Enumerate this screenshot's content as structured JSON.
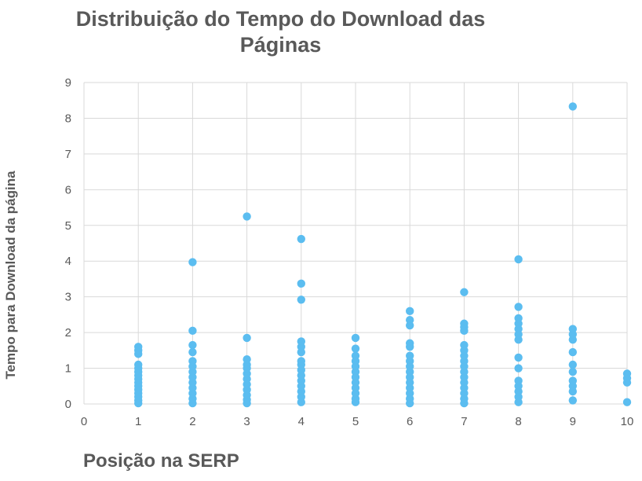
{
  "chart_data": {
    "type": "scatter",
    "title_lines": [
      "Distribuição do Tempo do Download das",
      "Páginas"
    ],
    "xlabel": "Posição na SERP",
    "ylabel": "Tempo para Download da página",
    "xlim": [
      0,
      10
    ],
    "ylim": [
      0,
      9
    ],
    "x_ticks": [
      0,
      1,
      2,
      3,
      4,
      5,
      6,
      7,
      8,
      9,
      10
    ],
    "y_ticks": [
      0,
      1,
      2,
      3,
      4,
      5,
      6,
      7,
      8,
      9
    ],
    "grid": true,
    "legend": "none",
    "marker_color": "#5BBDF0",
    "grid_color": "#D9D9D9",
    "series": [
      {
        "points": [
          [
            1,
            0.02
          ],
          [
            1,
            0.1
          ],
          [
            1,
            0.2
          ],
          [
            1,
            0.3
          ],
          [
            1,
            0.4
          ],
          [
            1,
            0.5
          ],
          [
            1,
            0.6
          ],
          [
            1,
            0.7
          ],
          [
            1,
            0.8
          ],
          [
            1,
            0.9
          ],
          [
            1,
            1.0
          ],
          [
            1,
            1.1
          ],
          [
            1,
            1.4
          ],
          [
            1,
            1.5
          ],
          [
            1,
            1.6
          ],
          [
            2,
            0.02
          ],
          [
            2,
            0.15
          ],
          [
            2,
            0.3
          ],
          [
            2,
            0.45
          ],
          [
            2,
            0.6
          ],
          [
            2,
            0.75
          ],
          [
            2,
            0.9
          ],
          [
            2,
            1.05
          ],
          [
            2,
            1.2
          ],
          [
            2,
            1.45
          ],
          [
            2,
            1.65
          ],
          [
            2,
            2.05
          ],
          [
            2,
            3.97
          ],
          [
            3,
            0.02
          ],
          [
            3,
            0.12
          ],
          [
            3,
            0.25
          ],
          [
            3,
            0.4
          ],
          [
            3,
            0.55
          ],
          [
            3,
            0.7
          ],
          [
            3,
            0.85
          ],
          [
            3,
            1.0
          ],
          [
            3,
            1.1
          ],
          [
            3,
            1.25
          ],
          [
            3,
            1.85
          ],
          [
            3,
            5.25
          ],
          [
            4,
            0.05
          ],
          [
            4,
            0.2
          ],
          [
            4,
            0.35
          ],
          [
            4,
            0.5
          ],
          [
            4,
            0.65
          ],
          [
            4,
            0.8
          ],
          [
            4,
            0.95
          ],
          [
            4,
            1.1
          ],
          [
            4,
            1.2
          ],
          [
            4,
            1.45
          ],
          [
            4,
            1.6
          ],
          [
            4,
            1.75
          ],
          [
            4,
            2.92
          ],
          [
            4,
            3.37
          ],
          [
            4,
            4.62
          ],
          [
            5,
            0.05
          ],
          [
            5,
            0.15
          ],
          [
            5,
            0.3
          ],
          [
            5,
            0.45
          ],
          [
            5,
            0.6
          ],
          [
            5,
            0.75
          ],
          [
            5,
            0.9
          ],
          [
            5,
            1.05
          ],
          [
            5,
            1.2
          ],
          [
            5,
            1.35
          ],
          [
            5,
            1.55
          ],
          [
            5,
            1.85
          ],
          [
            6,
            0.02
          ],
          [
            6,
            0.15
          ],
          [
            6,
            0.3
          ],
          [
            6,
            0.45
          ],
          [
            6,
            0.6
          ],
          [
            6,
            0.75
          ],
          [
            6,
            0.9
          ],
          [
            6,
            1.05
          ],
          [
            6,
            1.2
          ],
          [
            6,
            1.35
          ],
          [
            6,
            1.6
          ],
          [
            6,
            1.7
          ],
          [
            6,
            2.2
          ],
          [
            6,
            2.35
          ],
          [
            6,
            2.6
          ],
          [
            7,
            0.02
          ],
          [
            7,
            0.15
          ],
          [
            7,
            0.3
          ],
          [
            7,
            0.45
          ],
          [
            7,
            0.6
          ],
          [
            7,
            0.75
          ],
          [
            7,
            0.9
          ],
          [
            7,
            1.05
          ],
          [
            7,
            1.2
          ],
          [
            7,
            1.35
          ],
          [
            7,
            1.5
          ],
          [
            7,
            1.65
          ],
          [
            7,
            2.05
          ],
          [
            7,
            2.15
          ],
          [
            7,
            2.25
          ],
          [
            7,
            3.13
          ],
          [
            8,
            0.05
          ],
          [
            8,
            0.2
          ],
          [
            8,
            0.35
          ],
          [
            8,
            0.5
          ],
          [
            8,
            0.65
          ],
          [
            8,
            1.0
          ],
          [
            8,
            1.3
          ],
          [
            8,
            1.8
          ],
          [
            8,
            1.95
          ],
          [
            8,
            2.1
          ],
          [
            8,
            2.25
          ],
          [
            8,
            2.4
          ],
          [
            8,
            2.72
          ],
          [
            8,
            4.05
          ],
          [
            9,
            0.1
          ],
          [
            9,
            0.35
          ],
          [
            9,
            0.5
          ],
          [
            9,
            0.65
          ],
          [
            9,
            0.9
          ],
          [
            9,
            1.1
          ],
          [
            9,
            1.45
          ],
          [
            9,
            1.8
          ],
          [
            9,
            1.95
          ],
          [
            9,
            2.1
          ],
          [
            9,
            8.33
          ],
          [
            10,
            0.05
          ],
          [
            10,
            0.6
          ],
          [
            10,
            0.72
          ],
          [
            10,
            0.85
          ]
        ]
      }
    ]
  }
}
